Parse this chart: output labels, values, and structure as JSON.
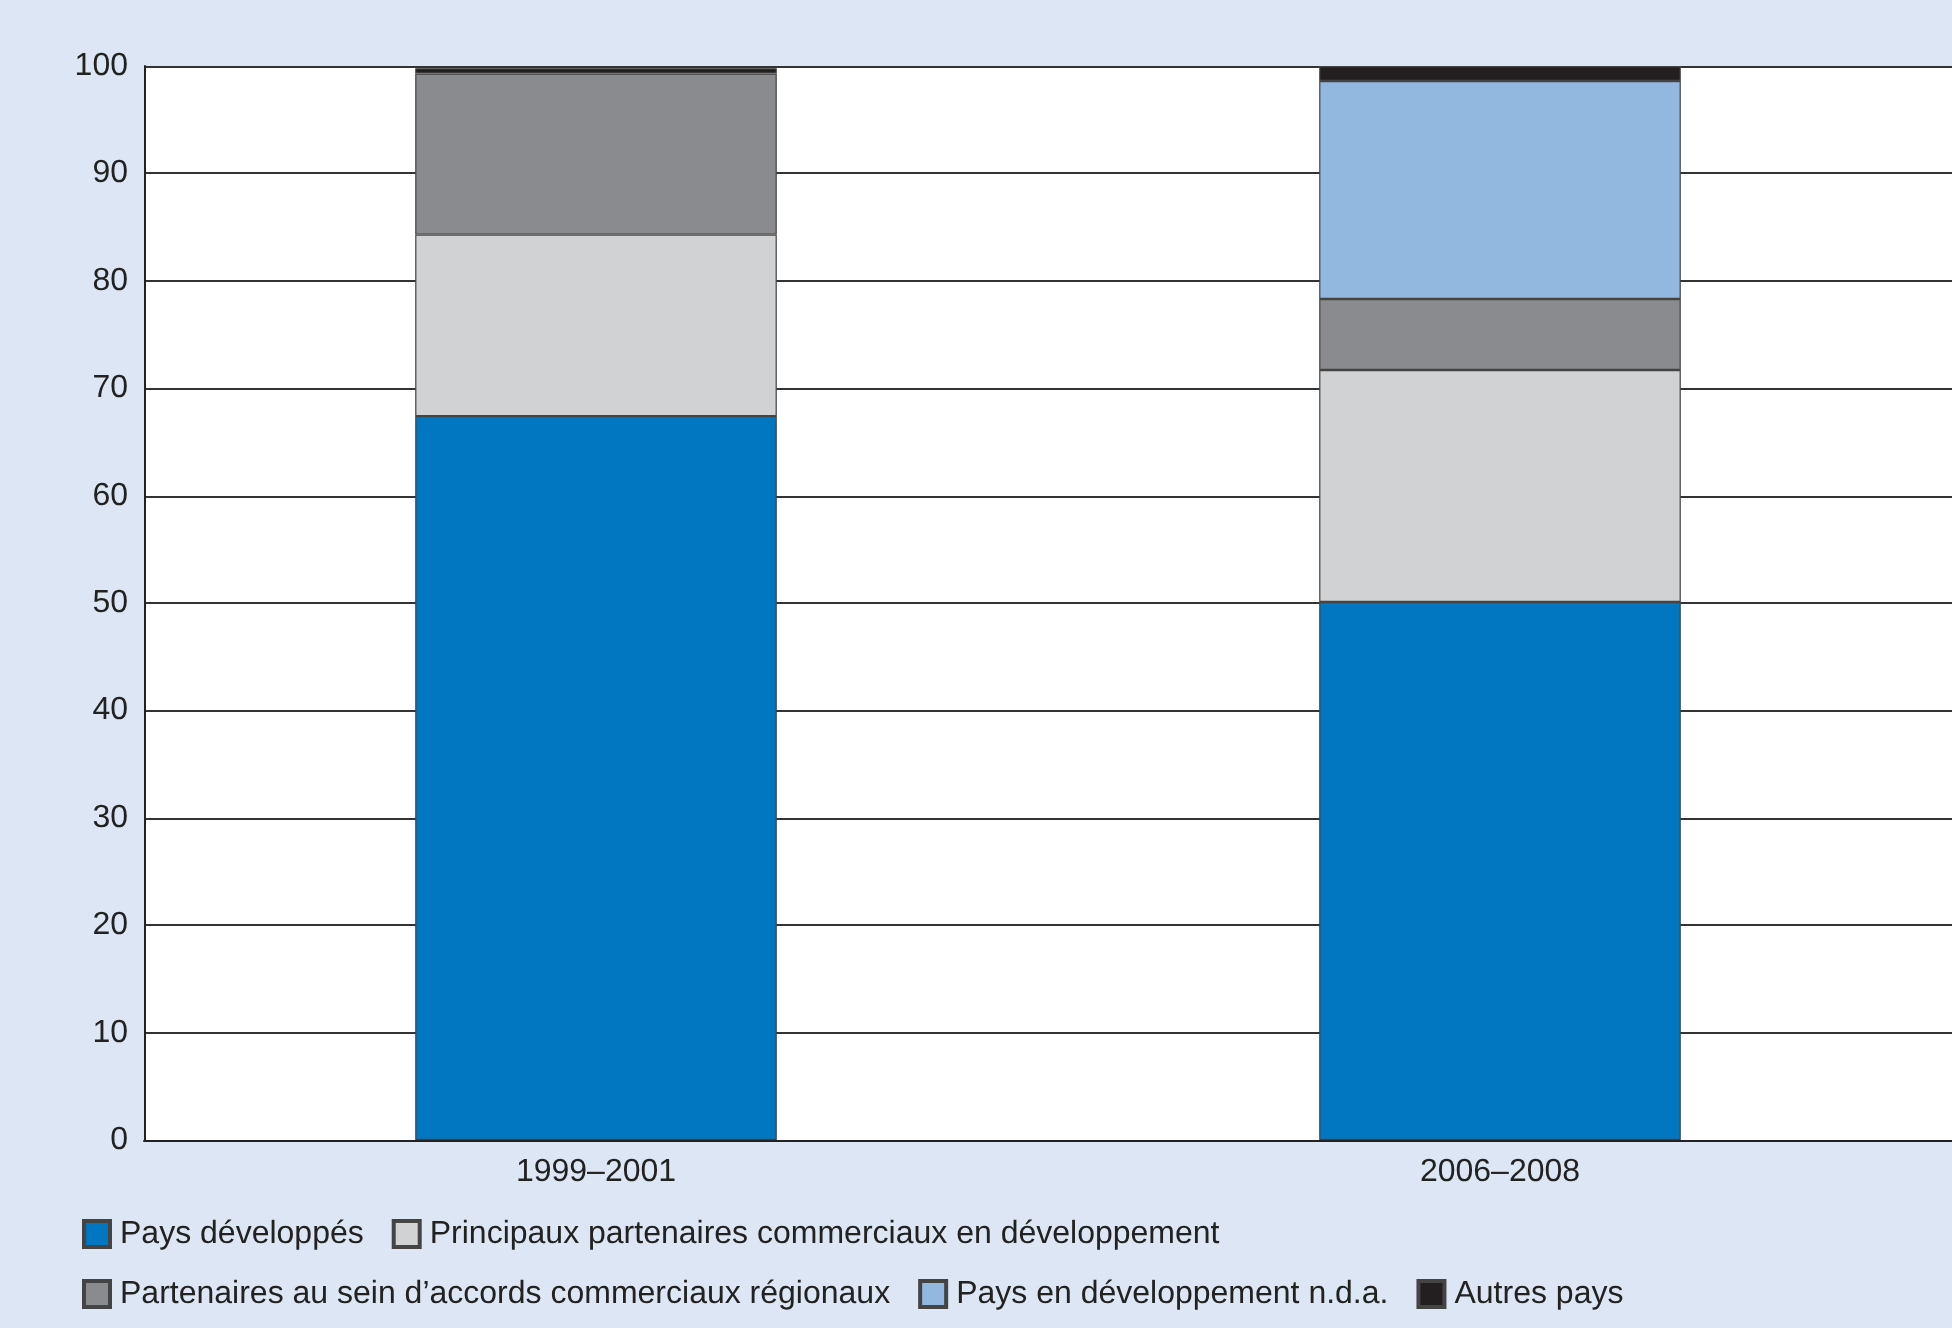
{
  "chart_data": {
    "type": "bar",
    "stacked": true,
    "categories": [
      "1999–2001",
      "2006–2008"
    ],
    "series": [
      {
        "name": "Pays développés",
        "color": "#0077c0",
        "values": [
          67.4,
          50.1
        ]
      },
      {
        "name": "Principaux partenaires commerciaux en développement",
        "color": "#d1d2d4",
        "values": [
          16.9,
          21.6
        ]
      },
      {
        "name": "Partenaires au sein d’accords commerciaux régionaux",
        "color": "#8a8b8e",
        "values": [
          15.0,
          6.6
        ]
      },
      {
        "name": "Pays en développement n.d.a.",
        "color": "#93b8e0",
        "values": [
          null,
          20.3
        ]
      },
      {
        "name": "Autres pays",
        "color": "#231f20",
        "values": [
          0.5,
          1.4
        ]
      }
    ],
    "ylim": [
      0,
      100
    ],
    "yticks": [
      0,
      10,
      20,
      30,
      40,
      50,
      60,
      70,
      80,
      90,
      100
    ],
    "grid": "y",
    "legend": "bottom"
  }
}
